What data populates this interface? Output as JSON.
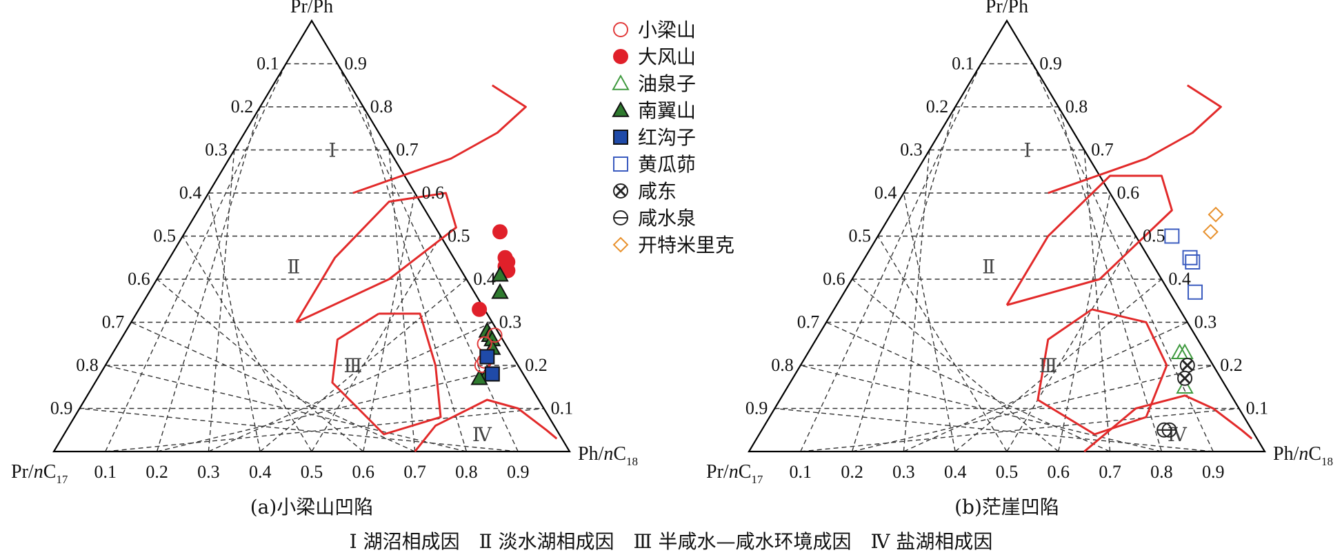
{
  "chart_data": [
    {
      "type": "ternary-scatter",
      "caption": "(a)小梁山凹陷",
      "axis_labels": {
        "top": "Pr/Ph",
        "left_main": "Pr/",
        "left_italic": "n",
        "left_c": "C",
        "left_sub": "17",
        "right_main": "Ph/",
        "right_italic": "n",
        "right_c": "C",
        "right_sub": "18"
      },
      "left_ticks": [
        "0.1",
        "0.2",
        "0.3",
        "0.4",
        "0.5",
        "0.6",
        "0.7",
        "0.8",
        "0.9"
      ],
      "right_ticks": [
        "0.9",
        "0.8",
        "0.7",
        "0.6",
        "0.5",
        "0.4",
        "0.3",
        "0.2",
        "0.1"
      ],
      "bottom_ticks": [
        "0.1",
        "0.2",
        "0.3",
        "0.4",
        "0.5",
        "0.6",
        "0.7",
        "0.8",
        "0.9"
      ],
      "regions": [
        {
          "label": "Ⅰ",
          "at": [
            0.19,
            0.7
          ]
        },
        {
          "label": "Ⅱ",
          "at": [
            0.25,
            0.43
          ]
        },
        {
          "label": "Ⅲ",
          "at": [
            0.48,
            0.2
          ]
        },
        {
          "label": "Ⅳ",
          "at": [
            0.81,
            0.04
          ]
        }
      ],
      "boundaries": [
        [
          [
            0.425,
            0.85
          ],
          [
            0.515,
            0.8
          ],
          [
            0.49,
            0.74
          ],
          [
            0.43,
            0.68
          ],
          [
            0.28,
            0.6
          ]
        ],
        [
          [
            0.32,
            0.3
          ],
          [
            0.32,
            0.45
          ],
          [
            0.36,
            0.58
          ],
          [
            0.46,
            0.6
          ],
          [
            0.52,
            0.52
          ],
          [
            0.45,
            0.4
          ],
          [
            0.32,
            0.3
          ]
        ],
        [
          [
            0.47,
            0.32
          ],
          [
            0.42,
            0.26
          ],
          [
            0.46,
            0.16
          ],
          [
            0.62,
            0.04
          ],
          [
            0.71,
            0.08
          ],
          [
            0.64,
            0.2
          ],
          [
            0.55,
            0.32
          ],
          [
            0.47,
            0.32
          ]
        ],
        [
          [
            0.7,
            0.0
          ],
          [
            0.71,
            0.06
          ],
          [
            0.78,
            0.12
          ],
          [
            0.85,
            0.1
          ],
          [
            0.93,
            0.05
          ],
          [
            0.96,
            0.03
          ]
        ]
      ],
      "series": [
        {
          "name": "大风山",
          "points": [
            [
              0.61,
              0.51
            ],
            [
              0.66,
              0.44
            ],
            [
              0.65,
              0.45
            ],
            [
              0.66,
              0.43
            ],
            [
              0.67,
              0.42
            ],
            [
              0.67,
              0.42
            ],
            [
              0.66,
              0.33
            ]
          ]
        },
        {
          "name": "南翼山",
          "points": [
            [
              0.66,
              0.41
            ],
            [
              0.68,
              0.37
            ],
            [
              0.7,
              0.28
            ],
            [
              0.71,
              0.27
            ],
            [
              0.72,
              0.26
            ],
            [
              0.73,
              0.24
            ],
            [
              0.75,
              0.18
            ],
            [
              0.74,
              0.17
            ]
          ]
        },
        {
          "name": "小梁山",
          "points": [
            [
              0.71,
              0.25
            ],
            [
              0.72,
              0.27
            ],
            [
              0.73,
              0.21
            ],
            [
              0.73,
              0.2
            ]
          ]
        },
        {
          "name": "红沟子",
          "points": [
            [
              0.73,
              0.22
            ],
            [
              0.76,
              0.18
            ]
          ]
        }
      ]
    },
    {
      "type": "ternary-scatter",
      "caption": "(b)茫崖凹陷",
      "axis_labels": {
        "top": "Pr/Ph",
        "left_main": "Pr/",
        "left_italic": "n",
        "left_c": "C",
        "left_sub": "17",
        "right_main": "Ph/",
        "right_italic": "n",
        "right_c": "C",
        "right_sub": "18"
      },
      "left_ticks": [
        "0.1",
        "0.2",
        "0.3",
        "0.4",
        "0.5",
        "0.6",
        "0.7",
        "0.8",
        "0.9"
      ],
      "right_ticks": [
        "0.9",
        "0.8",
        "0.7",
        "0.6",
        "0.5",
        "0.4",
        "0.3",
        "0.2",
        "0.1"
      ],
      "bottom_ticks": [
        "0.1",
        "0.2",
        "0.3",
        "0.4",
        "0.5",
        "0.6",
        "0.7",
        "0.8",
        "0.9"
      ],
      "regions": [
        {
          "label": "Ⅰ",
          "at": [
            0.19,
            0.7
          ]
        },
        {
          "label": "Ⅱ",
          "at": [
            0.25,
            0.43
          ]
        },
        {
          "label": "Ⅲ",
          "at": [
            0.48,
            0.2
          ]
        },
        {
          "label": "Ⅳ",
          "at": [
            0.81,
            0.04
          ]
        }
      ],
      "boundaries": [
        [
          [
            0.425,
            0.85
          ],
          [
            0.515,
            0.8
          ],
          [
            0.49,
            0.74
          ],
          [
            0.43,
            0.68
          ],
          [
            0.28,
            0.6
          ]
        ],
        [
          [
            0.33,
            0.34
          ],
          [
            0.33,
            0.5
          ],
          [
            0.38,
            0.64
          ],
          [
            0.48,
            0.64
          ],
          [
            0.54,
            0.56
          ],
          [
            0.48,
            0.4
          ],
          [
            0.33,
            0.34
          ]
        ],
        [
          [
            0.5,
            0.33
          ],
          [
            0.45,
            0.26
          ],
          [
            0.5,
            0.12
          ],
          [
            0.65,
            0.04
          ],
          [
            0.73,
            0.08
          ],
          [
            0.71,
            0.2
          ],
          [
            0.62,
            0.3
          ],
          [
            0.5,
            0.33
          ]
        ],
        [
          [
            0.65,
            0.0
          ],
          [
            0.7,
            0.1
          ],
          [
            0.78,
            0.13
          ],
          [
            0.85,
            0.1
          ],
          [
            0.93,
            0.05
          ],
          [
            0.96,
            0.03
          ]
        ]
      ],
      "series": [
        {
          "name": "开特米里克",
          "points": [
            [
              0.63,
              0.55
            ],
            [
              0.64,
              0.51
            ]
          ]
        },
        {
          "name": "黄瓜茆",
          "points": [
            [
              0.57,
              0.5
            ],
            [
              0.63,
              0.45
            ],
            [
              0.64,
              0.44
            ],
            [
              0.68,
              0.37
            ]
          ]
        },
        {
          "name": "油泉子",
          "points": [
            [
              0.72,
              0.23
            ],
            [
              0.73,
              0.23
            ],
            [
              0.77,
              0.15
            ]
          ]
        },
        {
          "name": "咸东",
          "points": [
            [
              0.75,
              0.2
            ],
            [
              0.76,
              0.17
            ]
          ]
        },
        {
          "name": "咸水泉",
          "points": [
            [
              0.78,
              0.05
            ],
            [
              0.79,
              0.05
            ]
          ]
        }
      ]
    }
  ],
  "legend": [
    {
      "label": "小梁山",
      "marker": "circle",
      "filled": false,
      "color": "#e23b3b"
    },
    {
      "label": "大风山",
      "marker": "circle",
      "filled": true,
      "color": "#e0202a"
    },
    {
      "label": "油泉子",
      "marker": "triangle",
      "filled": false,
      "color": "#3f9a3f"
    },
    {
      "label": "南翼山",
      "marker": "triangle",
      "filled": true,
      "color": "#2f7a2f"
    },
    {
      "label": "红沟子",
      "marker": "square",
      "filled": true,
      "color": "#1f4aa8"
    },
    {
      "label": "黄瓜茆",
      "marker": "square",
      "filled": false,
      "color": "#3a5bbf"
    },
    {
      "label": "咸东",
      "marker": "xcircle",
      "filled": false,
      "color": "#222222"
    },
    {
      "label": "咸水泉",
      "marker": "thetacircle",
      "filled": false,
      "color": "#222222"
    },
    {
      "label": "开特米里克",
      "marker": "diamond",
      "filled": false,
      "color": "#e8912d"
    }
  ],
  "footer": "Ⅰ 湖沼相成因　Ⅱ 淡水湖相成因　Ⅲ 半咸水—咸水环境成因　Ⅳ 盐湖相成因",
  "colors": {
    "boundary": "#e22a2a",
    "grid": "#333333",
    "frame": "#000000"
  }
}
